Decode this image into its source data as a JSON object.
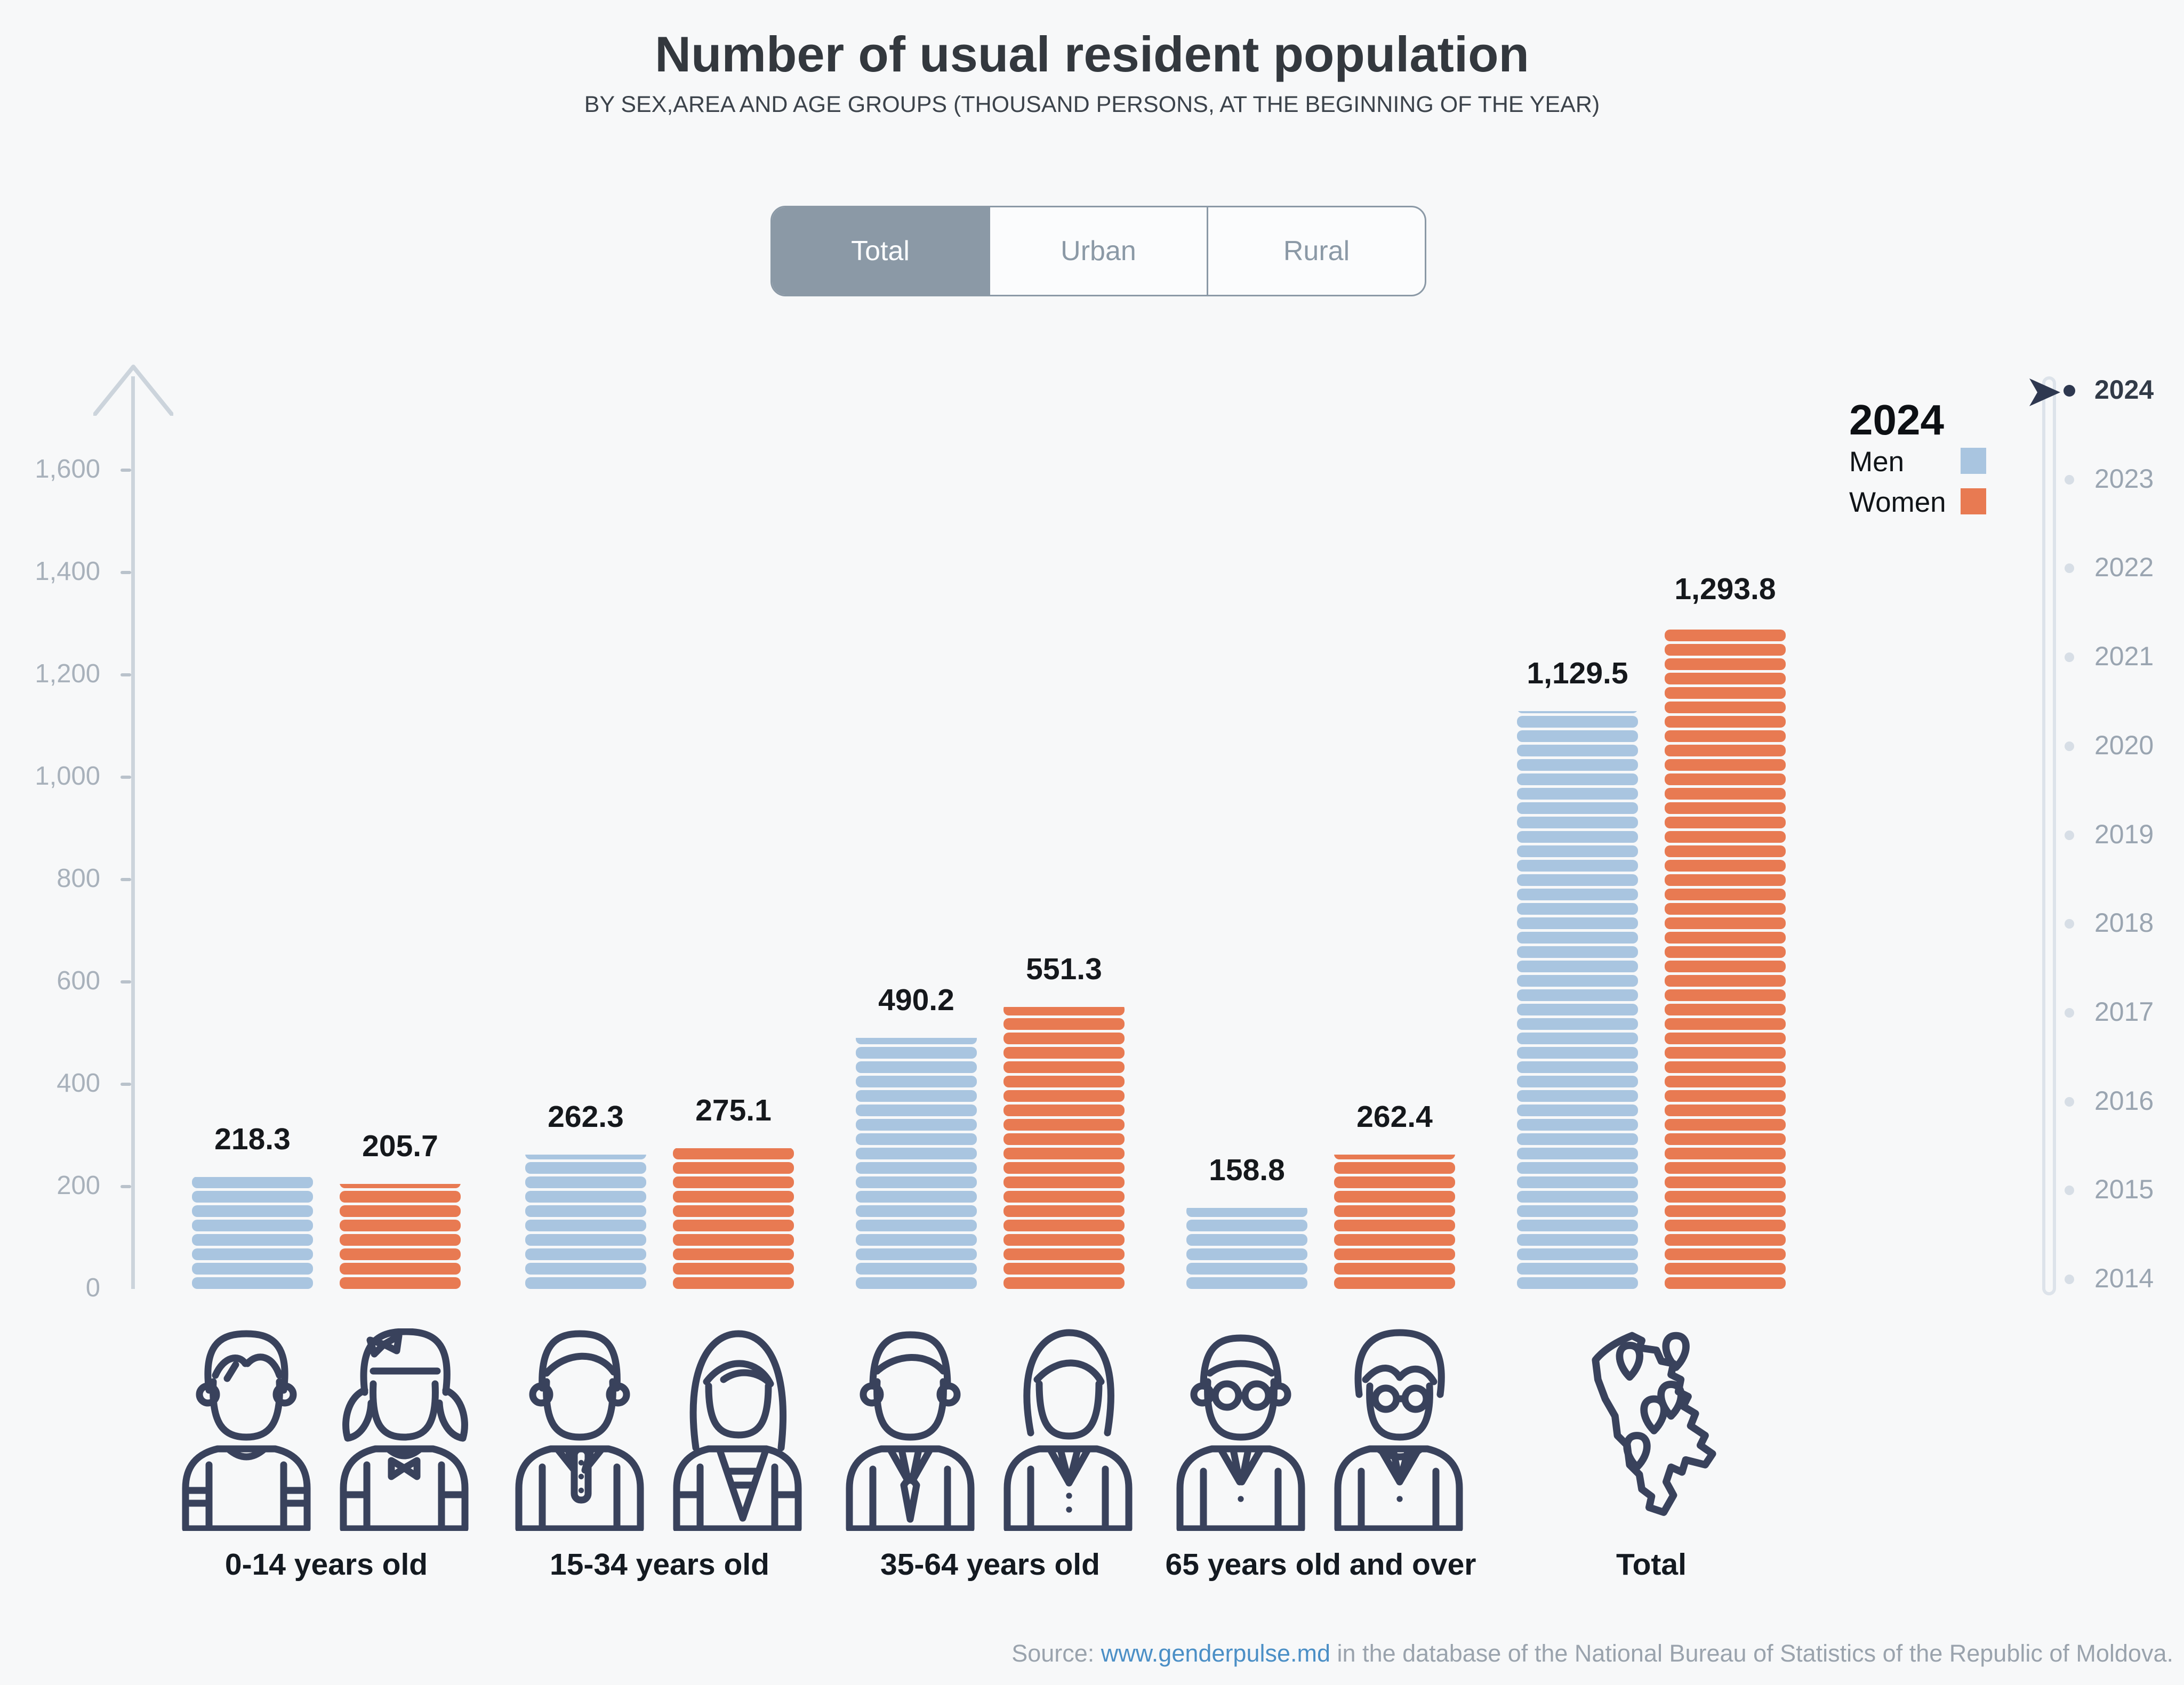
{
  "header": {
    "title": "Number of usual resident population",
    "subtitle": "BY SEX,AREA AND AGE GROUPS (THOUSAND PERSONS, AT THE BEGINNING OF THE YEAR)"
  },
  "tabs": {
    "items": [
      {
        "label": "Total"
      },
      {
        "label": "Urban"
      },
      {
        "label": "Rural"
      }
    ],
    "selected": "Total"
  },
  "legend": {
    "year": "2024",
    "men_label": "Men",
    "women_label": "Women"
  },
  "yaxis": {
    "ticks": [
      {
        "label": "1,600",
        "value": 1600
      },
      {
        "label": "1,400",
        "value": 1400
      },
      {
        "label": "1,200",
        "value": 1200
      },
      {
        "label": "1,000",
        "value": 1000
      },
      {
        "label": "800",
        "value": 800
      },
      {
        "label": "600",
        "value": 600
      },
      {
        "label": "400",
        "value": 400
      },
      {
        "label": "200",
        "value": 200
      },
      {
        "label": "0",
        "value": 0
      }
    ]
  },
  "timeline": {
    "years": [
      "2024",
      "2023",
      "2022",
      "2021",
      "2020",
      "2019",
      "2018",
      "2017",
      "2016",
      "2015",
      "2014"
    ],
    "selected": "2024"
  },
  "chart_data": {
    "type": "bar",
    "title": "Number of usual resident population",
    "subtitle": "By sex, area and age groups (thousand persons, at the beginning of the year)",
    "year": "2024",
    "area": "Total",
    "categories": [
      "0-14 years old",
      "15-34 years old",
      "35-64 years old",
      "65 years old and over",
      "Total"
    ],
    "series": [
      {
        "name": "Men",
        "color": "#a9c5e0",
        "values": [
          218.3,
          262.3,
          490.2,
          158.8,
          1129.5
        ],
        "labels": [
          "218.3",
          "262.3",
          "490.2",
          "158.8",
          "1,129.5"
        ]
      },
      {
        "name": "Women",
        "color": "#e87a52",
        "values": [
          205.7,
          275.1,
          551.3,
          262.4,
          1293.8
        ],
        "labels": [
          "205.7",
          "275.1",
          "551.3",
          "262.4",
          "1,293.8"
        ]
      }
    ],
    "ylim": [
      0,
      1600
    ],
    "grid": false,
    "legend_position": "top-right"
  },
  "source": {
    "prefix": "Source: ",
    "link": "www.genderpulse.md",
    "suffix": " in the database of the National Bureau of Statistics of the Republic of Moldova."
  },
  "colors": {
    "men": "#a9c5e0",
    "women": "#e87a52",
    "navy": "#2e3850",
    "tab": "#8b99a6",
    "axis": "#ccd4dc",
    "link": "#4b8fc6",
    "background": "#f7f8f9"
  }
}
